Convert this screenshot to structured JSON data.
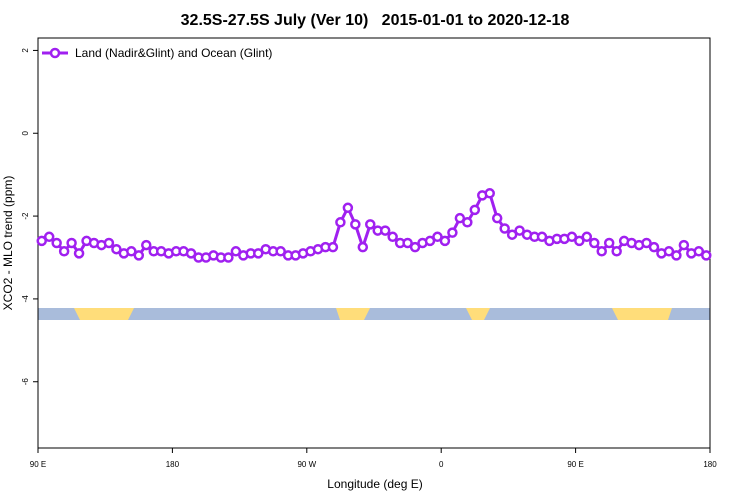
{
  "chart_data": {
    "type": "line",
    "title": "32.5S-27.5S July (Ver 10)   2015-01-01 to 2020-12-18",
    "x_label": "Longitude (deg E)",
    "y_label": "XCO2 - MLO trend (ppm)",
    "xlim": [
      90,
      540
    ],
    "ylim": [
      -7.6,
      2.3
    ],
    "xticks": [
      {
        "value": 90,
        "label": "90 E"
      },
      180,
      {
        "value": 270,
        "label": "90 W"
      },
      {
        "value": 360,
        "label": "0"
      },
      {
        "value": 450,
        "label": "90 E"
      },
      {
        "value": 540,
        "label": "180"
      }
    ],
    "yticks": [
      2,
      0,
      -2,
      -4,
      -6
    ],
    "legend": "top-left",
    "x": [
      92.5,
      97.5,
      102.5,
      107.5,
      112.5,
      117.5,
      122.5,
      127.5,
      132.5,
      137.5,
      142.5,
      147.5,
      152.5,
      157.5,
      162.5,
      167.5,
      172.5,
      177.5,
      182.5,
      187.5,
      192.5,
      197.5,
      202.5,
      207.5,
      212.5,
      217.5,
      222.5,
      227.5,
      232.5,
      237.5,
      242.5,
      247.5,
      252.5,
      257.5,
      262.5,
      267.5,
      272.5,
      277.5,
      282.5,
      287.5,
      292.5,
      297.5,
      302.5,
      307.5,
      312.5,
      317.5,
      322.5,
      327.5,
      332.5,
      337.5,
      342.5,
      347.5,
      352.5,
      357.5,
      362.5,
      367.5,
      372.5,
      377.5,
      382.5,
      387.5,
      392.5,
      397.5,
      402.5,
      407.5,
      412.5,
      417.5,
      422.5,
      427.5,
      432.5,
      437.5,
      442.5,
      447.5,
      452.5,
      457.5,
      462.5,
      467.5,
      472.5,
      477.5,
      482.5,
      487.5,
      492.5,
      497.5,
      502.5,
      507.5,
      512.5,
      517.5,
      522.5,
      527.5,
      532.5,
      537.5
    ],
    "series": [
      {
        "name": "Land (Nadir&Glint) and Ocean (Glint)",
        "color": "#a020f0",
        "values": [
          -2.6,
          -2.5,
          -2.65,
          -2.85,
          -2.65,
          -2.9,
          -2.6,
          -2.65,
          -2.7,
          -2.65,
          -2.8,
          -2.9,
          -2.85,
          -2.95,
          -2.7,
          -2.85,
          -2.85,
          -2.9,
          -2.85,
          -2.85,
          -2.9,
          -3.0,
          -3.0,
          -2.95,
          -3.0,
          -3.0,
          -2.85,
          -2.95,
          -2.9,
          -2.9,
          -2.8,
          -2.85,
          -2.85,
          -2.95,
          -2.95,
          -2.9,
          -2.85,
          -2.8,
          -2.75,
          -2.75,
          -2.15,
          -1.8,
          -2.2,
          -2.75,
          -2.2,
          -2.35,
          -2.35,
          -2.5,
          -2.65,
          -2.65,
          -2.75,
          -2.65,
          -2.6,
          -2.5,
          -2.6,
          -2.4,
          -2.05,
          -2.15,
          -1.85,
          -1.5,
          -1.45,
          -2.05,
          -2.3,
          -2.45,
          -2.35,
          -2.45,
          -2.5,
          -2.5,
          -2.6,
          -2.55,
          -2.55,
          -2.5,
          -2.6,
          -2.5,
          -2.65,
          -2.85,
          -2.65,
          -2.85,
          -2.6,
          -2.65,
          -2.7,
          -2.65,
          -2.75,
          -2.9,
          -2.85,
          -2.95,
          -2.7,
          -2.9,
          -2.85,
          -2.95
        ]
      }
    ]
  }
}
